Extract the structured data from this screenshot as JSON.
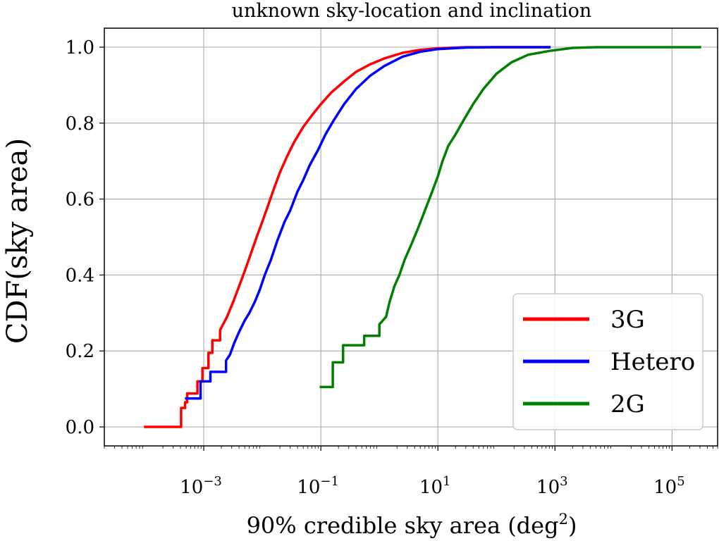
{
  "chart_data": {
    "type": "line",
    "title": "unknown sky-location and inclination",
    "xlabel": "90% credible sky area (deg",
    "xlabel_sup": "2",
    "xlabel_close": ")",
    "ylabel": "CDF(sky area)",
    "xscale": "log",
    "xlim": [
      2e-05,
      600000
    ],
    "ylim": [
      -0.05,
      1.05
    ],
    "grid": true,
    "legend_position": "lower-right",
    "xticks": [
      {
        "value": 0.001,
        "base": "10",
        "exp": "−3"
      },
      {
        "value": 0.1,
        "base": "10",
        "exp": "−1"
      },
      {
        "value": 10,
        "base": "10",
        "exp": "1"
      },
      {
        "value": 1000,
        "base": "10",
        "exp": "3"
      },
      {
        "value": 100000,
        "base": "10",
        "exp": "5"
      }
    ],
    "yticks": [
      {
        "value": 0.0,
        "label": "0.0"
      },
      {
        "value": 0.2,
        "label": "0.2"
      },
      {
        "value": 0.4,
        "label": "0.4"
      },
      {
        "value": 0.6,
        "label": "0.6"
      },
      {
        "value": 0.8,
        "label": "0.8"
      },
      {
        "value": 1.0,
        "label": "1.0"
      }
    ],
    "series": [
      {
        "name": "3G",
        "color": "#ff0000",
        "points": [
          [
            0.0001,
            0.0
          ],
          [
            0.00041,
            0.0
          ],
          [
            0.00041,
            0.05
          ],
          [
            0.00048,
            0.05
          ],
          [
            0.00048,
            0.065
          ],
          [
            0.00052,
            0.065
          ],
          [
            0.00052,
            0.088
          ],
          [
            0.00078,
            0.088
          ],
          [
            0.00078,
            0.12
          ],
          [
            0.00095,
            0.12
          ],
          [
            0.00095,
            0.155
          ],
          [
            0.0012,
            0.155
          ],
          [
            0.0012,
            0.195
          ],
          [
            0.0014,
            0.195
          ],
          [
            0.0014,
            0.228
          ],
          [
            0.0019,
            0.228
          ],
          [
            0.0019,
            0.255
          ],
          [
            0.0025,
            0.29
          ],
          [
            0.0032,
            0.33
          ],
          [
            0.004,
            0.37
          ],
          [
            0.005,
            0.41
          ],
          [
            0.0065,
            0.46
          ],
          [
            0.008,
            0.5
          ],
          [
            0.01,
            0.54
          ],
          [
            0.013,
            0.59
          ],
          [
            0.016,
            0.63
          ],
          [
            0.02,
            0.67
          ],
          [
            0.026,
            0.71
          ],
          [
            0.035,
            0.75
          ],
          [
            0.05,
            0.79
          ],
          [
            0.07,
            0.82
          ],
          [
            0.1,
            0.85
          ],
          [
            0.15,
            0.88
          ],
          [
            0.25,
            0.91
          ],
          [
            0.4,
            0.935
          ],
          [
            0.7,
            0.955
          ],
          [
            1.2,
            0.97
          ],
          [
            2.5,
            0.985
          ],
          [
            5,
            0.993
          ],
          [
            10,
            0.997
          ],
          [
            30,
            1.0
          ],
          [
            800,
            1.0
          ]
        ]
      },
      {
        "name": "Hetero",
        "color": "#0000ff",
        "points": [
          [
            0.0005,
            0.075
          ],
          [
            0.00088,
            0.075
          ],
          [
            0.00088,
            0.12
          ],
          [
            0.0013,
            0.12
          ],
          [
            0.0013,
            0.145
          ],
          [
            0.0024,
            0.145
          ],
          [
            0.0024,
            0.175
          ],
          [
            0.0028,
            0.19
          ],
          [
            0.0033,
            0.22
          ],
          [
            0.004,
            0.25
          ],
          [
            0.005,
            0.28
          ],
          [
            0.006,
            0.3
          ],
          [
            0.0075,
            0.33
          ],
          [
            0.009,
            0.36
          ],
          [
            0.011,
            0.4
          ],
          [
            0.014,
            0.44
          ],
          [
            0.018,
            0.49
          ],
          [
            0.024,
            0.54
          ],
          [
            0.03,
            0.57
          ],
          [
            0.04,
            0.62
          ],
          [
            0.05,
            0.65
          ],
          [
            0.065,
            0.69
          ],
          [
            0.09,
            0.73
          ],
          [
            0.12,
            0.77
          ],
          [
            0.17,
            0.81
          ],
          [
            0.25,
            0.85
          ],
          [
            0.4,
            0.89
          ],
          [
            0.7,
            0.925
          ],
          [
            1.2,
            0.95
          ],
          [
            2.5,
            0.975
          ],
          [
            5,
            0.988
          ],
          [
            10,
            0.995
          ],
          [
            30,
            0.999
          ],
          [
            100,
            1.0
          ],
          [
            800,
            1.0
          ]
        ]
      },
      {
        "name": "2G",
        "color": "#008000",
        "points": [
          [
            0.1,
            0.105
          ],
          [
            0.16,
            0.105
          ],
          [
            0.16,
            0.17
          ],
          [
            0.24,
            0.17
          ],
          [
            0.24,
            0.215
          ],
          [
            0.55,
            0.215
          ],
          [
            0.55,
            0.24
          ],
          [
            1.0,
            0.24
          ],
          [
            1.0,
            0.27
          ],
          [
            1.3,
            0.29
          ],
          [
            1.5,
            0.33
          ],
          [
            1.8,
            0.37
          ],
          [
            2.2,
            0.4
          ],
          [
            2.7,
            0.44
          ],
          [
            3.5,
            0.48
          ],
          [
            4.5,
            0.52
          ],
          [
            6,
            0.57
          ],
          [
            8,
            0.62
          ],
          [
            10,
            0.66
          ],
          [
            12,
            0.7
          ],
          [
            15,
            0.74
          ],
          [
            20,
            0.77
          ],
          [
            28,
            0.81
          ],
          [
            40,
            0.85
          ],
          [
            60,
            0.89
          ],
          [
            100,
            0.93
          ],
          [
            180,
            0.96
          ],
          [
            350,
            0.98
          ],
          [
            800,
            0.99
          ],
          [
            2000,
            0.998
          ],
          [
            5000,
            1.0
          ],
          [
            300000,
            1.0
          ]
        ]
      }
    ]
  }
}
